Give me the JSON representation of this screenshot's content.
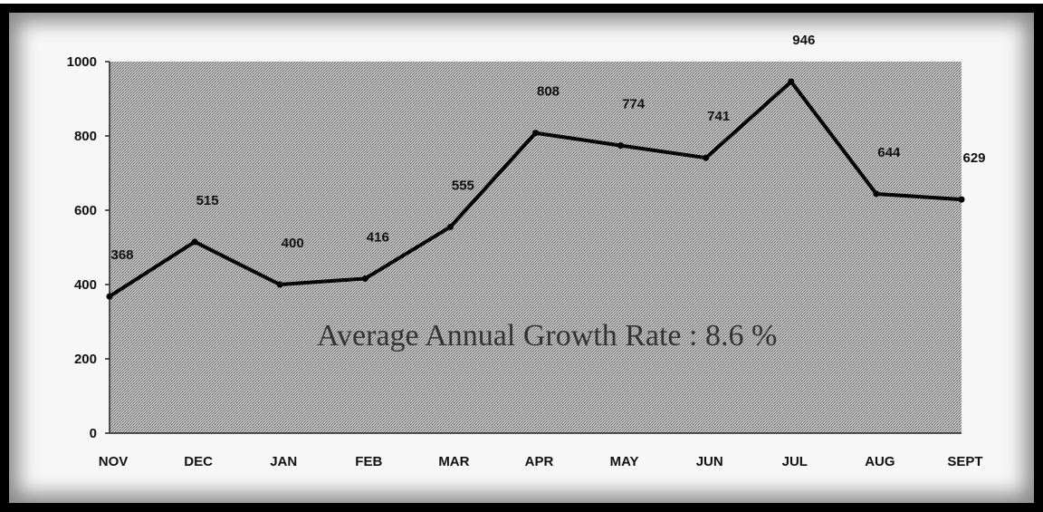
{
  "chart_data": {
    "type": "line",
    "title": "",
    "xlabel": "",
    "ylabel": "",
    "categories": [
      "NOV",
      "DEC",
      "JAN",
      "FEB",
      "MAR",
      "APR",
      "MAY",
      "JUN",
      "JUL",
      "AUG",
      "SEPT"
    ],
    "values": [
      368,
      515,
      400,
      416,
      555,
      808,
      774,
      741,
      946,
      644,
      629
    ],
    "ylim": [
      0,
      1000
    ],
    "yticks": [
      0,
      200,
      400,
      600,
      800,
      1000
    ],
    "grid": false,
    "legend": "none",
    "plot_background": "stippled gray",
    "line_color": "#000000",
    "annotation": "Average Annual Growth Rate : 8.6 %"
  }
}
